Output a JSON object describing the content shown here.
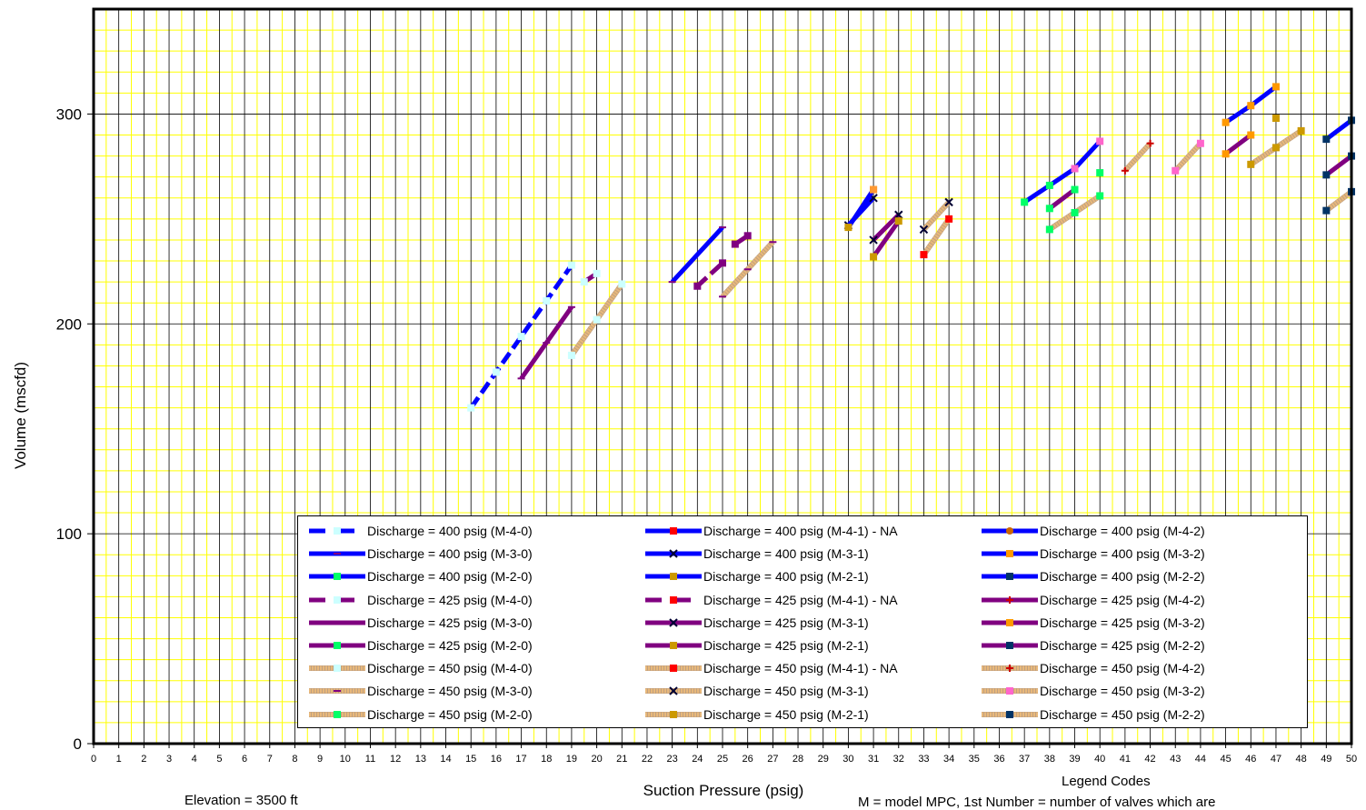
{
  "chart_data": {
    "type": "line",
    "title": "",
    "xlabel": "Suction Pressure (psig)",
    "ylabel": "Volume (mscfd)",
    "xlim": [
      0,
      50
    ],
    "ylim": [
      0,
      350
    ],
    "x_ticks": [
      0,
      1,
      2,
      3,
      4,
      5,
      6,
      7,
      8,
      9,
      10,
      11,
      12,
      13,
      14,
      15,
      16,
      17,
      18,
      19,
      20,
      21,
      22,
      23,
      24,
      25,
      26,
      27,
      28,
      29,
      30,
      31,
      32,
      33,
      34,
      35,
      36,
      37,
      38,
      39,
      40,
      41,
      42,
      43,
      44,
      45,
      46,
      47,
      48,
      49,
      50
    ],
    "y_ticks": [
      0,
      100,
      200,
      300
    ],
    "grid": true,
    "legend_position": "bottom-right",
    "series": [
      {
        "name": "Discharge = 400 psig (M-4-0)",
        "x": [
          15,
          16,
          17,
          18,
          19
        ],
        "y": [
          160,
          177,
          194,
          211,
          228
        ],
        "color": "#0000ff",
        "style": "dashed",
        "marker": "square",
        "marker_color": "#ccffff"
      },
      {
        "name": "Discharge = 400 psig (M-4-1) - NA",
        "x": [],
        "y": [],
        "color": "#0000ff",
        "style": "solid",
        "marker": "square",
        "marker_color": "#ff0000"
      },
      {
        "name": "Discharge = 400 psig (M-4-2)",
        "x": [],
        "y": [],
        "color": "#0000ff",
        "style": "solid",
        "marker": "circle",
        "marker_color": "#cc6600"
      },
      {
        "name": "Discharge = 400 psig (M-3-0)",
        "x": [
          23,
          25
        ],
        "y": [
          220,
          246
        ],
        "color": "#0000ff",
        "style": "solid",
        "marker": "dash",
        "marker_color": "#800080"
      },
      {
        "name": "Discharge = 400 psig (M-3-1)",
        "x": [
          30,
          31
        ],
        "y": [
          247,
          260
        ],
        "color": "#0000ff",
        "style": "solid",
        "marker": "x",
        "marker_color": "#000033"
      },
      {
        "name": "Discharge = 400 psig (M-3-2)",
        "x": [
          45,
          46,
          47
        ],
        "y": [
          296,
          304,
          313
        ],
        "color": "#0000ff",
        "style": "solid",
        "marker": "square",
        "marker_color": "#ff9900"
      },
      {
        "name": "Discharge = 400 psig (M-2-0)",
        "x": [
          37,
          38,
          39
        ],
        "y": [
          258,
          266,
          274
        ],
        "color": "#0000ff",
        "style": "solid",
        "marker": "square",
        "marker_color": "#00ff66"
      },
      {
        "name": "Discharge = 400 psig (M-2-1)",
        "x": [
          30,
          31
        ],
        "y": [
          246,
          264
        ],
        "color": "#0000ff",
        "style": "solid",
        "marker": "square",
        "marker_color": "#cc9900"
      },
      {
        "name": "Discharge = 400 psig (M-2-2)",
        "x": [
          49,
          50
        ],
        "y": [
          288,
          297
        ],
        "color": "#0000ff",
        "style": "solid",
        "marker": "square",
        "marker_color": "#003366"
      },
      {
        "name": "Discharge = 425 psig (M-4-0)",
        "x": [
          19.5,
          20
        ],
        "y": [
          220,
          224
        ],
        "color": "#800080",
        "style": "dashed",
        "marker": "square",
        "marker_color": "#ccffff"
      },
      {
        "name": "Discharge = 425 psig (M-4-1) - NA",
        "x": [],
        "y": [],
        "color": "#800080",
        "style": "dashed",
        "marker": "square",
        "marker_color": "#ff0000"
      },
      {
        "name": "Discharge = 425 psig (M-4-2)",
        "x": [],
        "y": [],
        "color": "#800080",
        "style": "solid",
        "marker": "plus",
        "marker_color": "#cc0000"
      },
      {
        "name": "Discharge = 425 psig (M-3-0)",
        "x": [
          17,
          18,
          19
        ],
        "y": [
          174,
          191,
          208
        ],
        "color": "#800080",
        "style": "solid",
        "marker": "dash",
        "marker_color": "#800080"
      },
      {
        "name": "Discharge = 425 psig (M-3-1)",
        "x": [
          31,
          32
        ],
        "y": [
          240,
          252
        ],
        "color": "#800080",
        "style": "solid",
        "marker": "x",
        "marker_color": "#000033"
      },
      {
        "name": "Discharge = 425 psig (M-3-2)",
        "x": [
          45,
          46
        ],
        "y": [
          281,
          290
        ],
        "color": "#800080",
        "style": "solid",
        "marker": "square",
        "marker_color": "#ff9900"
      },
      {
        "name": "Discharge = 425 psig (M-2-0)",
        "x": [
          38,
          39
        ],
        "y": [
          255,
          264
        ],
        "color": "#800080",
        "style": "solid",
        "marker": "square",
        "marker_color": "#00ff66"
      },
      {
        "name": "Discharge = 425 psig (M-2-1)",
        "x": [
          31,
          32
        ],
        "y": [
          232,
          249
        ],
        "color": "#800080",
        "style": "solid",
        "marker": "square",
        "marker_color": "#cc9900"
      },
      {
        "name": "Discharge = 425 psig (M-2-2)",
        "x": [
          49,
          50
        ],
        "y": [
          271,
          280
        ],
        "color": "#800080",
        "style": "solid",
        "marker": "square",
        "marker_color": "#003366"
      },
      {
        "name": "Discharge = 450 psig (M-4-0)",
        "x": [
          19,
          20,
          21
        ],
        "y": [
          185,
          202,
          219
        ],
        "color": "#e8b87a",
        "style": "dotted",
        "marker": "square",
        "marker_color": "#ccffff"
      },
      {
        "name": "Discharge = 450 psig (M-4-1) - NA",
        "x": [
          33,
          34
        ],
        "y": [
          233,
          250
        ],
        "color": "#e8b87a",
        "style": "dotted",
        "marker": "square",
        "marker_color": "#ff0000"
      },
      {
        "name": "Discharge = 450 psig (M-4-2)",
        "x": [
          41,
          42
        ],
        "y": [
          273,
          286
        ],
        "color": "#e8b87a",
        "style": "dotted",
        "marker": "plus",
        "marker_color": "#cc0000"
      },
      {
        "name": "Discharge = 450 psig (M-3-0)",
        "x": [
          25,
          26,
          27
        ],
        "y": [
          213,
          226,
          239
        ],
        "color": "#e8b87a",
        "style": "dotted",
        "marker": "dash",
        "marker_color": "#800080"
      },
      {
        "name": "Discharge = 450 psig (M-3-1)",
        "x": [
          33,
          34
        ],
        "y": [
          245,
          258
        ],
        "color": "#e8b87a",
        "style": "dotted",
        "marker": "x",
        "marker_color": "#000033"
      },
      {
        "name": "Discharge = 450 psig (M-3-2)",
        "x": [
          43,
          44
        ],
        "y": [
          273,
          286
        ],
        "color": "#e8b87a",
        "style": "dotted",
        "marker": "square",
        "marker_color": "#ff66cc"
      },
      {
        "name": "Discharge = 450 psig (M-2-0)",
        "x": [
          38,
          39,
          40
        ],
        "y": [
          245,
          253,
          261
        ],
        "color": "#e8b87a",
        "style": "dotted",
        "marker": "square",
        "marker_color": "#00ff66"
      },
      {
        "name": "Discharge = 450 psig (M-2-1)",
        "x": [
          46,
          47,
          48
        ],
        "y": [
          276,
          284,
          292
        ],
        "color": "#e8b87a",
        "style": "dotted",
        "marker": "square",
        "marker_color": "#cc9900"
      },
      {
        "name": "Discharge = 450 psig (M-2-2)",
        "x": [
          49,
          50
        ],
        "y": [
          254,
          263
        ],
        "color": "#e8b87a",
        "style": "dotted",
        "marker": "square",
        "marker_color": "#003366"
      }
    ],
    "extra_segments": [
      {
        "color": "#0000ff",
        "style": "solid",
        "x": [
          39,
          40
        ],
        "y": [
          274,
          287
        ],
        "marker_color": "#ff66cc"
      },
      {
        "color": "#00ff66",
        "style": "markers",
        "x": [
          40
        ],
        "y": [
          272
        ],
        "marker_color": "#00ff66"
      },
      {
        "color": "#800080",
        "style": "dashed",
        "x": [
          24,
          25
        ],
        "y": [
          218,
          229
        ],
        "marker_color": "#800080"
      },
      {
        "color": "#800080",
        "style": "dashed",
        "x": [
          25.5,
          26
        ],
        "y": [
          238,
          242
        ],
        "marker_color": "#800080"
      },
      {
        "color": "#0000ff",
        "style": "solid",
        "x": [
          31
        ],
        "y": [
          264
        ],
        "marker_color": "#ff9933"
      },
      {
        "color": "#cc9900",
        "style": "markers",
        "x": [
          47
        ],
        "y": [
          298
        ],
        "marker_color": "#cc9900"
      }
    ]
  },
  "notes": {
    "legend_codes_title": "Legend Codes",
    "elevation": "Elevation = 3500 ft",
    "model_code": "M = model MPC, 1st Number = number of valves which are"
  }
}
